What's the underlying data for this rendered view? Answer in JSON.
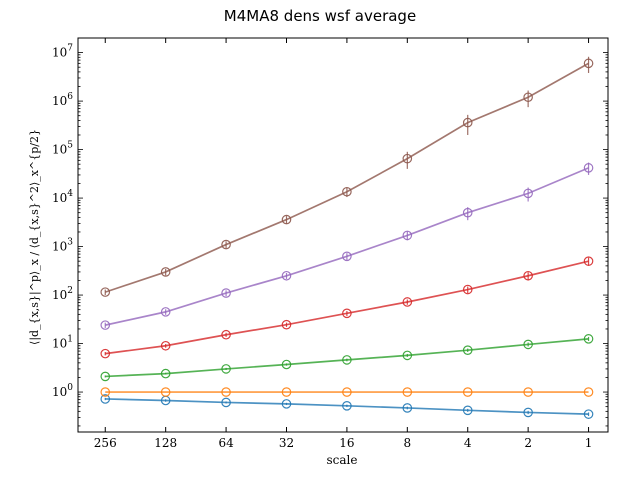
{
  "chart_data": {
    "type": "line",
    "title": "M4MA8 dens wsf average",
    "xlabel": "scale",
    "ylabel": "⟨|d_{x,s}|^p⟩_x / ⟨d_{x,s}^2⟩_x^{p/2}",
    "x_scale": "log2",
    "x_inverted": true,
    "y_scale": "log10",
    "xlim": [
      350,
      0.8
    ],
    "ylim": [
      0.15,
      20000000
    ],
    "x": [
      256,
      128,
      64,
      32,
      16,
      8,
      4,
      2,
      1
    ],
    "xtick_labels": [
      "256",
      "128",
      "64",
      "32",
      "16",
      "8",
      "4",
      "2",
      "1"
    ],
    "ytick_labels": [
      {
        "base": "10",
        "exp": "0",
        "value": 1
      },
      {
        "base": "10",
        "exp": "1",
        "value": 10
      },
      {
        "base": "10",
        "exp": "2",
        "value": 100
      },
      {
        "base": "10",
        "exp": "3",
        "value": 1000
      },
      {
        "base": "10",
        "exp": "4",
        "value": 10000
      },
      {
        "base": "10",
        "exp": "5",
        "value": 100000
      },
      {
        "base": "10",
        "exp": "6",
        "value": 1000000
      },
      {
        "base": "10",
        "exp": "7",
        "value": 10000000
      }
    ],
    "marker": "open-circle",
    "grid": false,
    "legend": "none",
    "series": [
      {
        "color": "#1f77b4",
        "values": [
          0.72,
          0.67,
          0.61,
          0.57,
          0.52,
          0.47,
          0.42,
          0.38,
          0.35
        ],
        "err": [
          0.04,
          0.04,
          0.03,
          0.03,
          0.03,
          0.03,
          0.03,
          0.03,
          0.03
        ]
      },
      {
        "color": "#ff7f0e",
        "values": [
          1,
          1,
          1,
          1,
          1,
          1,
          1,
          1,
          1
        ],
        "err": [
          0,
          0,
          0,
          0,
          0,
          0,
          0,
          0,
          0
        ]
      },
      {
        "color": "#2ca02c",
        "values": [
          2.1,
          2.4,
          3.0,
          3.7,
          4.6,
          5.7,
          7.3,
          9.6,
          12.5
        ],
        "err": [
          0.1,
          0.1,
          0.15,
          0.2,
          0.3,
          0.4,
          0.6,
          0.9,
          1.2
        ]
      },
      {
        "color": "#d62728",
        "values": [
          6.2,
          9.0,
          15.2,
          24.5,
          42,
          72,
          130,
          250,
          500
        ],
        "err": [
          0.5,
          0.8,
          1.5,
          2.5,
          5,
          9,
          20,
          45,
          90
        ]
      },
      {
        "color": "#9467bd",
        "values": [
          24,
          45,
          110,
          250,
          630,
          1700,
          5000,
          12500,
          42000
        ],
        "err": [
          3,
          6,
          15,
          35,
          100,
          350,
          1500,
          4000,
          12000
        ]
      },
      {
        "color": "#8c564b",
        "values": [
          115,
          300,
          1100,
          3600,
          13500,
          65000,
          360000,
          1200000,
          6000000
        ],
        "err": [
          15,
          45,
          180,
          650,
          3000,
          25000,
          160000,
          450000,
          2200000
        ]
      }
    ]
  }
}
